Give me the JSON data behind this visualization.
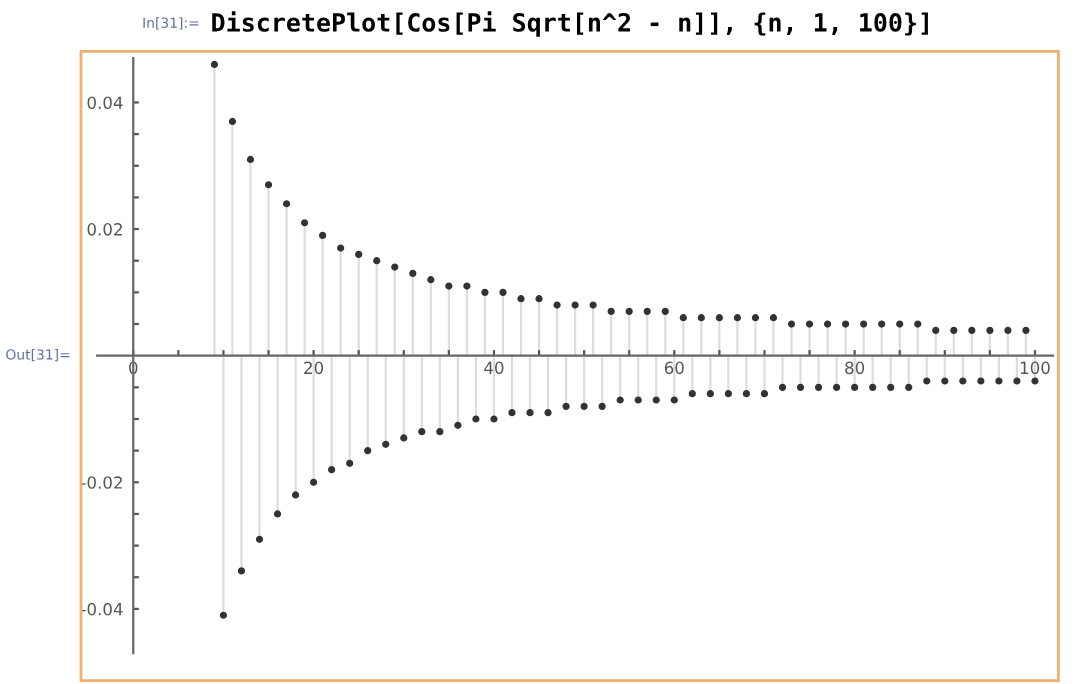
{
  "chart_data": {
    "type": "lollipop",
    "title": "DiscretePlot[Cos[Pi Sqrt[n^2 - n]], {n, 1, 100}]",
    "annotations": [
      "In[31]:=",
      "Out[31]="
    ],
    "x": [
      9,
      10,
      11,
      12,
      13,
      14,
      15,
      16,
      17,
      18,
      19,
      20,
      21,
      22,
      23,
      24,
      25,
      26,
      27,
      28,
      29,
      30,
      31,
      32,
      33,
      34,
      35,
      36,
      37,
      38,
      39,
      40,
      41,
      42,
      43,
      44,
      45,
      46,
      47,
      48,
      49,
      50,
      51,
      52,
      53,
      54,
      55,
      56,
      57,
      58,
      59,
      60,
      61,
      62,
      63,
      64,
      65,
      66,
      67,
      68,
      69,
      70,
      71,
      72,
      73,
      74,
      75,
      76,
      77,
      78,
      79,
      80,
      81,
      82,
      83,
      84,
      85,
      86,
      87,
      88,
      89,
      90,
      91,
      92,
      93,
      94,
      95,
      96,
      97,
      98,
      99,
      100
    ],
    "series": [
      {
        "color": "#333333",
        "values": [
          0.046,
          -0.041,
          0.037,
          -0.034,
          0.031,
          -0.029,
          0.027,
          -0.025,
          0.024,
          -0.022,
          0.021,
          -0.02,
          0.019,
          -0.018,
          0.017,
          -0.017,
          0.016,
          -0.015,
          0.015,
          -0.014,
          0.014,
          -0.013,
          0.013,
          -0.012,
          0.012,
          -0.012,
          0.011,
          -0.011,
          0.011,
          -0.01,
          0.01,
          -0.01,
          0.01,
          -0.009,
          0.009,
          -0.009,
          0.009,
          -0.009,
          0.008,
          -0.008,
          0.008,
          -0.008,
          0.008,
          -0.008,
          0.007,
          -0.007,
          0.007,
          -0.007,
          0.007,
          -0.007,
          0.007,
          -0.007,
          0.006,
          -0.006,
          0.006,
          -0.006,
          0.006,
          -0.006,
          0.006,
          -0.006,
          0.006,
          -0.006,
          0.006,
          -0.005,
          0.005,
          -0.005,
          0.005,
          -0.005,
          0.005,
          -0.005,
          0.005,
          -0.005,
          0.005,
          -0.005,
          0.005,
          -0.005,
          0.005,
          -0.005,
          0.005,
          -0.004,
          0.004,
          -0.004,
          0.004,
          -0.004,
          0.004,
          -0.004,
          0.004,
          -0.004,
          0.004,
          -0.004,
          0.004,
          -0.004
        ]
      }
    ],
    "xlim": [
      -4,
      102
    ],
    "ylim": [
      -0.047,
      0.047
    ],
    "xticks": [
      0,
      {
        "value": 5,
        "label": null
      },
      {
        "value": 10,
        "label": null
      },
      {
        "value": 15,
        "label": null
      },
      20,
      {
        "value": 25,
        "label": null
      },
      {
        "value": 30,
        "label": null
      },
      {
        "value": 35,
        "label": null
      },
      40,
      {
        "value": 45,
        "label": null
      },
      {
        "value": 50,
        "label": null
      },
      {
        "value": 55,
        "label": null
      },
      60,
      {
        "value": 65,
        "label": null
      },
      {
        "value": 70,
        "label": null
      },
      {
        "value": 75,
        "label": null
      },
      80,
      {
        "value": 85,
        "label": null
      },
      {
        "value": 90,
        "label": null
      },
      {
        "value": 95,
        "label": null
      },
      100
    ],
    "yticks": [
      -0.04,
      {
        "value": -0.035,
        "label": null
      },
      {
        "value": -0.03,
        "label": null
      },
      {
        "value": -0.025,
        "label": null
      },
      -0.02,
      {
        "value": -0.015,
        "label": null
      },
      {
        "value": -0.01,
        "label": null
      },
      {
        "value": -0.005,
        "label": null
      },
      {
        "value": 0.005,
        "label": null
      },
      {
        "value": 0.01,
        "label": null
      },
      {
        "value": 0.015,
        "label": null
      },
      0.02,
      {
        "value": 0.025,
        "label": null
      },
      {
        "value": 0.03,
        "label": null
      },
      {
        "value": 0.035,
        "label": null
      },
      0.04
    ],
    "marker": "circle",
    "grid": false,
    "legend": false
  }
}
